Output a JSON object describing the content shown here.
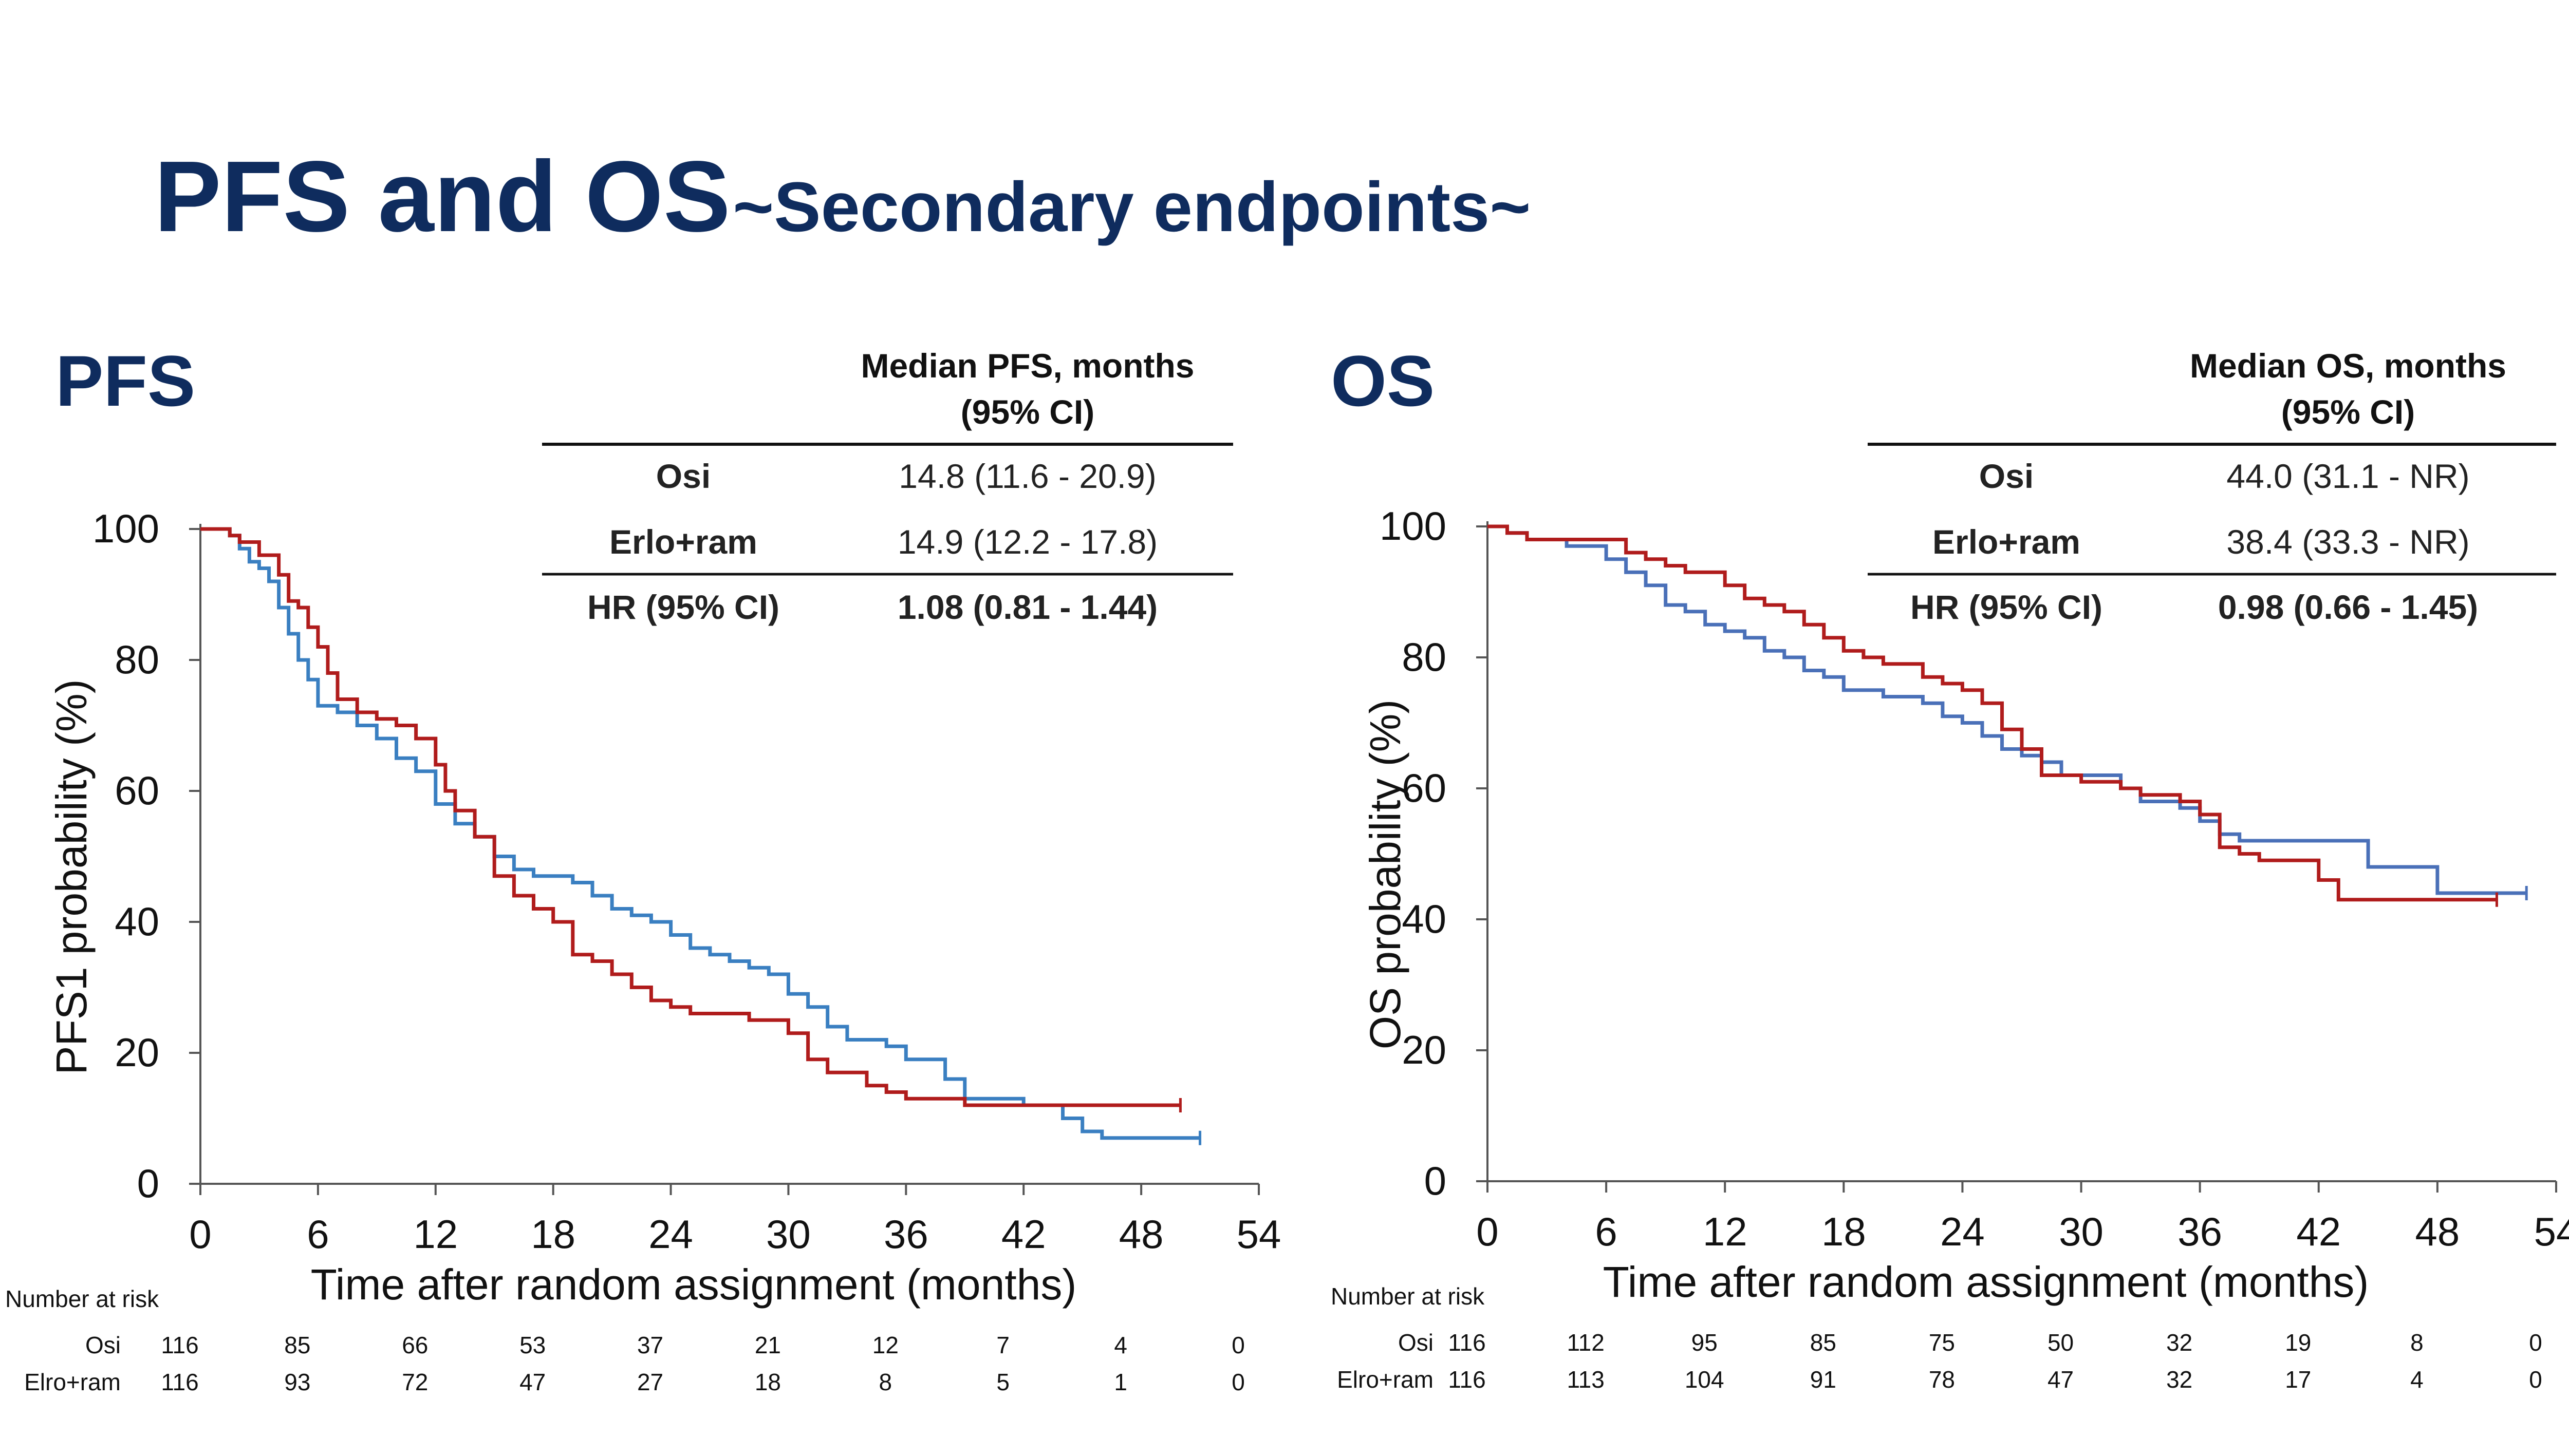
{
  "title": {
    "main": "PFS and OS",
    "sub": "~Secondary endpoints~"
  },
  "colors": {
    "osi": "#3a7fc1",
    "erlo_ram": "#b01c1c",
    "title": "#0f2c5e",
    "osi_os": "#4a70b8",
    "hr_label": "#2f4f8a"
  },
  "chart_data": [
    {
      "type": "line",
      "panel_title": "PFS",
      "summary_table": {
        "header": [
          "Median PFS, months",
          "(95% CI)"
        ],
        "rows": [
          {
            "label": "Osi",
            "value": "14.8 (11.6 - 20.9)"
          },
          {
            "label": "Erlo+ram",
            "value": "14.9 (12.2 - 17.8)"
          },
          {
            "label": "HR (95% CI)",
            "value": "1.08 (0.81 - 1.44)"
          }
        ]
      },
      "ylabel": "PFS1 probability  (%)",
      "xlabel": "Time after random assignment (months)",
      "xlim": [
        0,
        54
      ],
      "ylim": [
        0,
        100
      ],
      "xticks": [
        0,
        6,
        12,
        18,
        24,
        30,
        36,
        42,
        48,
        54
      ],
      "yticks": [
        0,
        20,
        40,
        60,
        80,
        100
      ],
      "series": [
        {
          "name": "Osi",
          "step": [
            [
              0,
              100
            ],
            [
              1,
              100
            ],
            [
              1.5,
              99
            ],
            [
              2,
              97
            ],
            [
              2.5,
              95
            ],
            [
              3,
              94
            ],
            [
              3.5,
              92
            ],
            [
              4,
              88
            ],
            [
              4.5,
              84
            ],
            [
              5,
              80
            ],
            [
              5.5,
              77
            ],
            [
              6,
              73
            ],
            [
              7,
              72
            ],
            [
              8,
              70
            ],
            [
              9,
              68
            ],
            [
              10,
              65
            ],
            [
              11,
              63
            ],
            [
              12,
              58
            ],
            [
              13,
              55
            ],
            [
              14,
              53
            ],
            [
              15,
              50
            ],
            [
              16,
              48
            ],
            [
              17,
              47
            ],
            [
              18,
              47
            ],
            [
              19,
              46
            ],
            [
              20,
              44
            ],
            [
              21,
              42
            ],
            [
              22,
              41
            ],
            [
              23,
              40
            ],
            [
              24,
              38
            ],
            [
              25,
              36
            ],
            [
              26,
              35
            ],
            [
              27,
              34
            ],
            [
              28,
              33
            ],
            [
              29,
              32
            ],
            [
              30,
              29
            ],
            [
              31,
              27
            ],
            [
              32,
              24
            ],
            [
              33,
              22
            ],
            [
              34,
              22
            ],
            [
              35,
              21
            ],
            [
              36,
              19
            ],
            [
              38,
              16
            ],
            [
              39,
              13
            ],
            [
              42,
              12
            ],
            [
              44,
              10
            ],
            [
              45,
              8
            ],
            [
              46,
              7
            ],
            [
              51,
              7
            ]
          ]
        },
        {
          "name": "Erlo+ram",
          "step": [
            [
              0,
              100
            ],
            [
              1,
              100
            ],
            [
              1.5,
              99
            ],
            [
              2,
              98
            ],
            [
              3,
              96
            ],
            [
              4,
              93
            ],
            [
              4.5,
              89
            ],
            [
              5,
              88
            ],
            [
              5.5,
              85
            ],
            [
              6,
              82
            ],
            [
              6.5,
              78
            ],
            [
              7,
              74
            ],
            [
              8,
              72
            ],
            [
              9,
              71
            ],
            [
              10,
              70
            ],
            [
              11,
              68
            ],
            [
              12,
              64
            ],
            [
              12.5,
              60
            ],
            [
              13,
              57
            ],
            [
              14,
              53
            ],
            [
              15,
              47
            ],
            [
              16,
              44
            ],
            [
              17,
              42
            ],
            [
              18,
              40
            ],
            [
              19,
              35
            ],
            [
              20,
              34
            ],
            [
              21,
              32
            ],
            [
              22,
              30
            ],
            [
              23,
              28
            ],
            [
              24,
              27
            ],
            [
              25,
              26
            ],
            [
              26,
              26
            ],
            [
              27,
              26
            ],
            [
              28,
              25
            ],
            [
              29,
              25
            ],
            [
              30,
              23
            ],
            [
              31,
              19
            ],
            [
              32,
              17
            ],
            [
              33,
              17
            ],
            [
              34,
              15
            ],
            [
              35,
              14
            ],
            [
              36,
              13
            ],
            [
              39,
              12
            ],
            [
              50,
              12
            ]
          ]
        }
      ],
      "at_risk": {
        "title": "Number at risk",
        "times": [
          0,
          6,
          12,
          18,
          24,
          30,
          36,
          42,
          48,
          54
        ],
        "rows": [
          {
            "label": "Osi",
            "values": [
              "116",
              "85",
              "66",
              "53",
              "37",
              "21",
              "12",
              "7",
              "4",
              "0"
            ]
          },
          {
            "label": "Elro+ram",
            "values": [
              "116",
              "93",
              "72",
              "47",
              "27",
              "18",
              "8",
              "5",
              "1",
              "0"
            ]
          }
        ]
      }
    },
    {
      "type": "line",
      "panel_title": "OS",
      "summary_table": {
        "header": [
          "Median OS, months",
          "(95% CI)"
        ],
        "rows": [
          {
            "label": "Osi",
            "value": "44.0 (31.1 - NR)"
          },
          {
            "label": "Erlo+ram",
            "value": "38.4 (33.3 - NR)"
          },
          {
            "label": "HR (95% CI)",
            "value": "0.98 (0.66 - 1.45)"
          }
        ]
      },
      "ylabel": "OS probability (%)",
      "xlabel": "Time after random assignment (months)",
      "xlim": [
        0,
        54
      ],
      "ylim": [
        0,
        100
      ],
      "xticks": [
        0,
        6,
        12,
        18,
        24,
        30,
        36,
        42,
        48,
        54
      ],
      "yticks": [
        0,
        20,
        40,
        60,
        80,
        100
      ],
      "series": [
        {
          "name": "Osi",
          "step": [
            [
              0,
              100
            ],
            [
              1,
              99
            ],
            [
              2,
              98
            ],
            [
              4,
              97
            ],
            [
              6,
              95
            ],
            [
              7,
              93
            ],
            [
              8,
              91
            ],
            [
              9,
              88
            ],
            [
              10,
              87
            ],
            [
              11,
              85
            ],
            [
              12,
              84
            ],
            [
              13,
              83
            ],
            [
              14,
              81
            ],
            [
              15,
              80
            ],
            [
              16,
              78
            ],
            [
              17,
              77
            ],
            [
              18,
              75
            ],
            [
              20,
              74
            ],
            [
              21,
              74
            ],
            [
              22,
              73
            ],
            [
              23,
              71
            ],
            [
              24,
              70
            ],
            [
              25,
              68
            ],
            [
              26,
              66
            ],
            [
              27,
              65
            ],
            [
              28,
              64
            ],
            [
              29,
              62
            ],
            [
              30,
              62
            ],
            [
              32,
              60
            ],
            [
              33,
              58
            ],
            [
              35,
              57
            ],
            [
              36,
              55
            ],
            [
              37,
              53
            ],
            [
              38,
              52
            ],
            [
              44,
              52
            ],
            [
              44.5,
              48
            ],
            [
              48,
              44
            ],
            [
              52.5,
              44
            ]
          ]
        },
        {
          "name": "Erlo+ram",
          "step": [
            [
              0,
              100
            ],
            [
              1,
              99
            ],
            [
              2,
              98
            ],
            [
              6,
              98
            ],
            [
              7,
              96
            ],
            [
              8,
              95
            ],
            [
              9,
              94
            ],
            [
              10,
              93
            ],
            [
              12,
              91
            ],
            [
              13,
              89
            ],
            [
              14,
              88
            ],
            [
              15,
              87
            ],
            [
              16,
              85
            ],
            [
              17,
              83
            ],
            [
              18,
              81
            ],
            [
              19,
              80
            ],
            [
              20,
              79
            ],
            [
              22,
              77
            ],
            [
              23,
              76
            ],
            [
              24,
              75
            ],
            [
              25,
              73
            ],
            [
              26,
              69
            ],
            [
              27,
              66
            ],
            [
              28,
              62
            ],
            [
              30,
              61
            ],
            [
              32,
              60
            ],
            [
              33,
              59
            ],
            [
              35,
              58
            ],
            [
              36,
              56
            ],
            [
              37,
              51
            ],
            [
              38,
              50
            ],
            [
              39,
              49
            ],
            [
              42,
              46
            ],
            [
              43,
              43
            ],
            [
              51,
              43
            ]
          ]
        }
      ],
      "at_risk": {
        "title": "Number at risk",
        "times": [
          0,
          6,
          12,
          18,
          24,
          30,
          36,
          42,
          48,
          54
        ],
        "rows": [
          {
            "label": "Osi",
            "values": [
              "116",
              "112",
              "95",
              "85",
              "75",
              "50",
              "32",
              "19",
              "8",
              "0"
            ]
          },
          {
            "label": "Elro+ram",
            "values": [
              "116",
              "113",
              "104",
              "91",
              "78",
              "47",
              "32",
              "17",
              "4",
              "0"
            ]
          }
        ]
      }
    }
  ]
}
